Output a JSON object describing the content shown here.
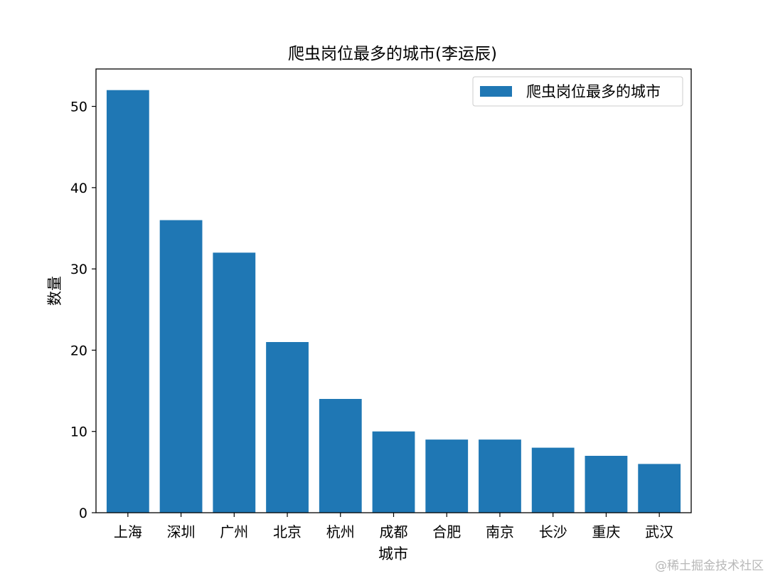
{
  "chart_data": {
    "type": "bar",
    "title": "爬虫岗位最多的城市(李运辰)",
    "xlabel": "城市",
    "ylabel": "数量",
    "categories": [
      "上海",
      "深圳",
      "广州",
      "北京",
      "杭州",
      "成都",
      "合肥",
      "南京",
      "长沙",
      "重庆",
      "武汉"
    ],
    "series": [
      {
        "name": "爬虫岗位最多的城市",
        "values": [
          52,
          36,
          32,
          21,
          14,
          10,
          9,
          9,
          8,
          7,
          6
        ],
        "color": "#1f77b4"
      }
    ],
    "ylim": [
      0,
      54.6
    ],
    "yticks": [
      0,
      10,
      20,
      30,
      40,
      50
    ],
    "grid": false,
    "legend_position": "top-right"
  },
  "watermark": "@稀土掘金技术社区"
}
